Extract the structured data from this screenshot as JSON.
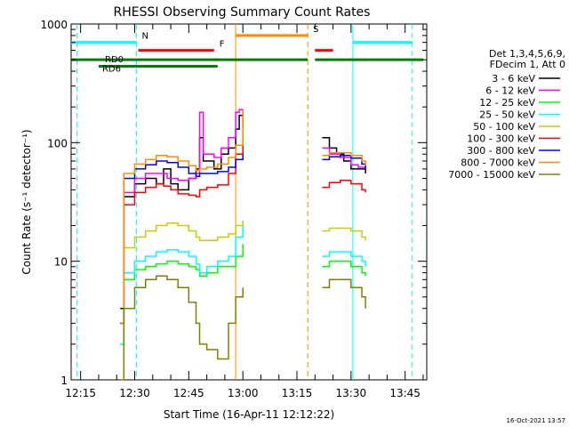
{
  "chart_data": {
    "type": "line",
    "title": "RHESSI Observing Summary Count Rates",
    "xlabel": "Start Time (16-Apr-11 12:12:22)",
    "ylabel": "Count Rate (s⁻¹ detector⁻¹)",
    "y_scale": "log",
    "xlim": [
      "12:12:22",
      "13:51:00"
    ],
    "ylim": [
      1,
      1000
    ],
    "x_ticks": [
      "12:15",
      "12:30",
      "12:45",
      "13:00",
      "13:15",
      "13:30",
      "13:45"
    ],
    "y_ticks": [
      "1",
      "10",
      "100",
      "1000"
    ],
    "footer": "16-Oct-2021 13:57",
    "legend": {
      "position": "right",
      "header": [
        "Det 1,3,4,5,6,9,",
        "FDecim 1, Att 0"
      ]
    },
    "series": [
      {
        "name": "3 - 6 keV",
        "color": "#000000",
        "values": [
          [
            "12:26:00",
            4
          ],
          [
            "12:27:00",
            35
          ],
          [
            "12:30:00",
            45
          ],
          [
            "12:33:00",
            50
          ],
          [
            "12:36:00",
            45
          ],
          [
            "12:38:00",
            60
          ],
          [
            "12:40:00",
            45
          ],
          [
            "12:42:00",
            40
          ],
          [
            "12:45:00",
            50
          ],
          [
            "12:47:00",
            60
          ],
          [
            "12:48:00",
            110
          ],
          [
            "12:49:00",
            70
          ],
          [
            "12:52:00",
            60
          ],
          [
            "12:54:00",
            80
          ],
          [
            "12:56:00",
            90
          ],
          [
            "12:58:00",
            130
          ],
          [
            "12:59:00",
            170
          ],
          [
            "13:00:00",
            130
          ],
          [
            "13:22:00",
            110
          ],
          [
            "13:24:00",
            90
          ],
          [
            "13:26:00",
            80
          ],
          [
            "13:28:00",
            70
          ],
          [
            "13:30:00",
            60
          ],
          [
            "13:32:00",
            60
          ],
          [
            "13:34:00",
            55
          ]
        ]
      },
      {
        "name": "6 - 12 keV",
        "color": "#ff00ff",
        "values": [
          [
            "12:26:00",
            3
          ],
          [
            "12:27:00",
            38
          ],
          [
            "12:30:00",
            50
          ],
          [
            "12:33:00",
            55
          ],
          [
            "12:36:00",
            55
          ],
          [
            "12:39:00",
            50
          ],
          [
            "12:42:00",
            48
          ],
          [
            "12:45:00",
            50
          ],
          [
            "12:47:00",
            55
          ],
          [
            "12:48:00",
            180
          ],
          [
            "12:49:00",
            80
          ],
          [
            "12:52:00",
            75
          ],
          [
            "12:54:00",
            90
          ],
          [
            "12:56:00",
            110
          ],
          [
            "12:58:00",
            180
          ],
          [
            "12:59:00",
            190
          ],
          [
            "13:00:00",
            150
          ],
          [
            "13:22:00",
            90
          ],
          [
            "13:24:00",
            80
          ],
          [
            "13:27:00",
            75
          ],
          [
            "13:30:00",
            65
          ],
          [
            "13:32:00",
            62
          ],
          [
            "13:34:00",
            60
          ]
        ]
      },
      {
        "name": "12 - 25 keV",
        "color": "#00ff00",
        "values": [
          [
            "12:26:00",
            2
          ],
          [
            "12:27:00",
            7
          ],
          [
            "12:30:00",
            8.5
          ],
          [
            "12:33:00",
            9
          ],
          [
            "12:36:00",
            9.5
          ],
          [
            "12:39:00",
            10
          ],
          [
            "12:42:00",
            9.5
          ],
          [
            "12:45:00",
            9
          ],
          [
            "12:47:00",
            8.5
          ],
          [
            "12:48:00",
            7.5
          ],
          [
            "12:50:00",
            8
          ],
          [
            "12:53:00",
            9
          ],
          [
            "12:56:00",
            9
          ],
          [
            "12:58:00",
            11
          ],
          [
            "13:00:00",
            14
          ],
          [
            "13:22:00",
            9
          ],
          [
            "13:24:00",
            10
          ],
          [
            "13:27:00",
            10
          ],
          [
            "13:30:00",
            9
          ],
          [
            "13:33:00",
            8
          ],
          [
            "13:34:00",
            7.5
          ]
        ]
      },
      {
        "name": "25 - 50 keV",
        "color": "#00ffff",
        "values": [
          [
            "12:26:00",
            2
          ],
          [
            "12:27:00",
            8
          ],
          [
            "12:30:00",
            10
          ],
          [
            "12:33:00",
            11
          ],
          [
            "12:36:00",
            12
          ],
          [
            "12:39:00",
            12.5
          ],
          [
            "12:42:00",
            12
          ],
          [
            "12:45:00",
            11
          ],
          [
            "12:47:00",
            9.5
          ],
          [
            "12:48:00",
            8
          ],
          [
            "12:50:00",
            9
          ],
          [
            "12:53:00",
            10
          ],
          [
            "12:56:00",
            11
          ],
          [
            "12:58:00",
            16
          ],
          [
            "13:00:00",
            22
          ],
          [
            "13:22:00",
            11
          ],
          [
            "13:24:00",
            12
          ],
          [
            "13:27:00",
            12
          ],
          [
            "13:30:00",
            11
          ],
          [
            "13:33:00",
            10
          ],
          [
            "13:34:00",
            9
          ]
        ]
      },
      {
        "name": "50 - 100 keV",
        "color": "#cccc00",
        "values": [
          [
            "12:26:00",
            3
          ],
          [
            "12:27:00",
            13
          ],
          [
            "12:30:00",
            16
          ],
          [
            "12:33:00",
            18
          ],
          [
            "12:36:00",
            20
          ],
          [
            "12:39:00",
            21
          ],
          [
            "12:42:00",
            20
          ],
          [
            "12:45:00",
            18
          ],
          [
            "12:47:00",
            16
          ],
          [
            "12:48:00",
            15
          ],
          [
            "12:50:00",
            15
          ],
          [
            "12:53:00",
            16
          ],
          [
            "12:56:00",
            17
          ],
          [
            "12:58:00",
            20
          ],
          [
            "13:00:00",
            22
          ],
          [
            "13:22:00",
            18
          ],
          [
            "13:24:00",
            19
          ],
          [
            "13:27:00",
            19
          ],
          [
            "13:30:00",
            18
          ],
          [
            "13:33:00",
            16
          ],
          [
            "13:34:00",
            15
          ]
        ]
      },
      {
        "name": "100 - 300 keV",
        "color": "#ff0000",
        "values": [
          [
            "12:26:00",
            3
          ],
          [
            "12:27:00",
            30
          ],
          [
            "12:30:00",
            38
          ],
          [
            "12:33:00",
            42
          ],
          [
            "12:36:00",
            45
          ],
          [
            "12:38:00",
            43
          ],
          [
            "12:40:00",
            40
          ],
          [
            "12:42:00",
            37
          ],
          [
            "12:45:00",
            36
          ],
          [
            "12:47:00",
            35
          ],
          [
            "12:48:00",
            40
          ],
          [
            "12:50:00",
            42
          ],
          [
            "12:53:00",
            44
          ],
          [
            "12:56:00",
            55
          ],
          [
            "12:58:00",
            80
          ],
          [
            "13:00:00",
            110
          ],
          [
            "13:22:00",
            42
          ],
          [
            "13:24:00",
            46
          ],
          [
            "13:27:00",
            48
          ],
          [
            "13:30:00",
            45
          ],
          [
            "13:33:00",
            40
          ],
          [
            "13:34:00",
            38
          ]
        ]
      },
      {
        "name": "300 - 800 keV",
        "color": "#0000ff",
        "values": [
          [
            "12:26:00",
            3
          ],
          [
            "12:27:00",
            50
          ],
          [
            "12:30:00",
            60
          ],
          [
            "12:33:00",
            65
          ],
          [
            "12:36:00",
            70
          ],
          [
            "12:39:00",
            68
          ],
          [
            "12:42:00",
            62
          ],
          [
            "12:45:00",
            55
          ],
          [
            "12:47:00",
            52
          ],
          [
            "12:48:00",
            55
          ],
          [
            "12:50:00",
            55
          ],
          [
            "12:53:00",
            57
          ],
          [
            "12:56:00",
            62
          ],
          [
            "12:58:00",
            72
          ],
          [
            "13:00:00",
            80
          ],
          [
            "13:22:00",
            72
          ],
          [
            "13:24:00",
            76
          ],
          [
            "13:27:00",
            78
          ],
          [
            "13:30:00",
            74
          ],
          [
            "13:33:00",
            66
          ],
          [
            "13:34:00",
            60
          ]
        ]
      },
      {
        "name": "800 - 7000 keV",
        "color": "#ff8c00",
        "values": [
          [
            "12:26:00",
            3
          ],
          [
            "12:27:00",
            55
          ],
          [
            "12:30:00",
            66
          ],
          [
            "12:33:00",
            72
          ],
          [
            "12:36:00",
            78
          ],
          [
            "12:39:00",
            76
          ],
          [
            "12:42:00",
            70
          ],
          [
            "12:45:00",
            64
          ],
          [
            "12:47:00",
            58
          ],
          [
            "12:48:00",
            60
          ],
          [
            "12:50:00",
            62
          ],
          [
            "12:53:00",
            66
          ],
          [
            "12:56:00",
            75
          ],
          [
            "12:58:00",
            95
          ],
          [
            "13:00:00",
            190
          ],
          [
            "13:22:00",
            78
          ],
          [
            "13:24:00",
            82
          ],
          [
            "13:27:00",
            82
          ],
          [
            "13:30:00",
            78
          ],
          [
            "13:33:00",
            70
          ],
          [
            "13:34:00",
            64
          ]
        ]
      },
      {
        "name": "7000 - 15000 keV",
        "color": "#808000",
        "values": [
          [
            "12:26:00",
            1
          ],
          [
            "12:27:00",
            4
          ],
          [
            "12:30:00",
            6
          ],
          [
            "12:33:00",
            7
          ],
          [
            "12:36:00",
            7.5
          ],
          [
            "12:39:00",
            7
          ],
          [
            "12:42:00",
            6
          ],
          [
            "12:45:00",
            4.5
          ],
          [
            "12:47:00",
            3
          ],
          [
            "12:48:00",
            2
          ],
          [
            "12:50:00",
            1.8
          ],
          [
            "12:53:00",
            1.5
          ],
          [
            "12:56:00",
            3
          ],
          [
            "12:58:00",
            5
          ],
          [
            "13:00:00",
            6
          ],
          [
            "13:22:00",
            6
          ],
          [
            "13:24:00",
            7
          ],
          [
            "13:27:00",
            7
          ],
          [
            "13:30:00",
            6
          ],
          [
            "13:33:00",
            5
          ],
          [
            "13:34:00",
            4
          ]
        ]
      }
    ],
    "annotations": {
      "vlines": [
        {
          "time": "12:14:00",
          "color": "#00ffff",
          "style": "dashed"
        },
        {
          "time": "12:30:30",
          "color": "#00ffff",
          "style": "dashed"
        },
        {
          "time": "12:58:00",
          "color": "#ff8c00",
          "style": "solid"
        },
        {
          "time": "13:18:00",
          "color": "#ff8c00",
          "style": "dashed"
        },
        {
          "time": "13:30:30",
          "color": "#00ffff",
          "style": "solid"
        },
        {
          "time": "13:47:00",
          "color": "#00ffff",
          "style": "dashed"
        }
      ],
      "bars": [
        {
          "label": "N",
          "color": "#00ffff",
          "level": 700,
          "segments": [
            [
              "12:12:22",
              "12:30:30"
            ],
            [
              "13:30:30",
              "13:47:00"
            ]
          ]
        },
        {
          "label": "F",
          "color": "#ff0000",
          "level": 600,
          "segments": [
            [
              "12:31:00",
              "12:52:00"
            ],
            [
              "13:20:00",
              "13:25:00"
            ]
          ]
        },
        {
          "label": "S",
          "color": "#ff8c00",
          "level": 800,
          "segments": [
            [
              "12:58:00",
              "13:18:00"
            ]
          ]
        },
        {
          "label": "RD0",
          "color": "#008000",
          "level": 500,
          "segments": [
            [
              "12:12:22",
              "12:53:00"
            ],
            [
              "12:52:00",
              "13:18:00"
            ],
            [
              "13:20:00",
              "13:35:00"
            ],
            [
              "13:35:00",
              "13:50:00"
            ]
          ]
        },
        {
          "label": "RD6",
          "color": "#008000",
          "level": 440,
          "segments": [
            [
              "12:20:00",
              "12:53:00"
            ]
          ]
        }
      ]
    }
  }
}
